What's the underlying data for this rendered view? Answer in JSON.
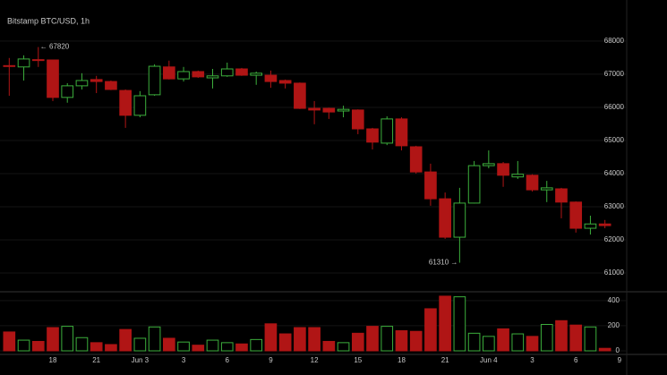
{
  "chart_data": {
    "type": "candlestick",
    "title": "Bitstamp BTC/USD, 1h",
    "categories": [
      null,
      null,
      null,
      "18",
      null,
      null,
      "21",
      null,
      null,
      "Jun 3",
      null,
      null,
      "3",
      null,
      null,
      "6",
      null,
      null,
      "9",
      null,
      null,
      "12",
      null,
      null,
      "15",
      null,
      null,
      "18",
      null,
      null,
      "21",
      null,
      null,
      "Jun 4",
      null,
      null,
      "3",
      null,
      null,
      "6",
      null,
      null,
      "9"
    ],
    "open": [
      67260,
      67220,
      67440,
      67430,
      66300,
      66650,
      66840,
      66780,
      66510,
      65760,
      66380,
      67220,
      66860,
      67080,
      66890,
      66950,
      67160,
      66970,
      66970,
      66810,
      66730,
      65970,
      65970,
      65890,
      65920,
      65350,
      64920,
      65650,
      64810,
      64050,
      63240,
      62080,
      63110,
      64240,
      64300,
      63900,
      63950,
      63510,
      63540,
      63140,
      62350,
      62480,
      null
    ],
    "high": [
      67490,
      67570,
      67820,
      67440,
      66730,
      67030,
      66950,
      66810,
      66540,
      66490,
      67300,
      67410,
      67220,
      67110,
      67160,
      67350,
      67190,
      67080,
      67110,
      66840,
      66750,
      66190,
      65990,
      66050,
      65940,
      65380,
      65730,
      65700,
      64840,
      64300,
      63430,
      63570,
      64380,
      64700,
      64350,
      64380,
      63980,
      63780,
      63570,
      63160,
      62730,
      62600,
      null
    ],
    "low": [
      66350,
      66810,
      67220,
      66190,
      66140,
      66540,
      66430,
      66520,
      65380,
      65700,
      66350,
      66840,
      66780,
      66890,
      66570,
      66920,
      66950,
      66680,
      66590,
      66570,
      65950,
      65490,
      65650,
      65700,
      65190,
      64730,
      64860,
      64700,
      64000,
      63030,
      62030,
      61310,
      63100,
      64160,
      63600,
      63840,
      63460,
      63140,
      62650,
      62220,
      62160,
      62350,
      null
    ],
    "close": [
      67240,
      67460,
      67420,
      66300,
      66650,
      66810,
      66780,
      66540,
      65760,
      66350,
      67240,
      66860,
      67080,
      66920,
      66950,
      67160,
      66970,
      67030,
      66780,
      66730,
      65970,
      65920,
      65860,
      65940,
      65350,
      64950,
      65650,
      64840,
      64050,
      63240,
      62080,
      63110,
      64240,
      64300,
      63950,
      63980,
      63510,
      63570,
      63140,
      62350,
      62480,
      62430,
      null
    ],
    "volume": [
      150,
      85,
      75,
      185,
      195,
      105,
      65,
      50,
      170,
      100,
      190,
      100,
      70,
      45,
      85,
      65,
      55,
      90,
      215,
      135,
      185,
      185,
      75,
      65,
      140,
      195,
      195,
      160,
      155,
      335,
      435,
      430,
      140,
      115,
      175,
      135,
      115,
      210,
      240,
      205,
      190,
      20,
      null
    ],
    "up_color": "#3cae3c",
    "down_color": "#b01515",
    "ylim": [
      60460,
      68430
    ],
    "yticks": [
      61000,
      62000,
      63000,
      64000,
      65000,
      66000,
      67000,
      68000
    ],
    "volume_ylim": [
      0,
      470
    ],
    "volume_yticks": [
      0,
      200,
      400
    ],
    "annotations": [
      {
        "label": "← 67820",
        "value": 67820
      },
      {
        "label": "61310 →",
        "value": 61310
      }
    ],
    "grid": true
  }
}
